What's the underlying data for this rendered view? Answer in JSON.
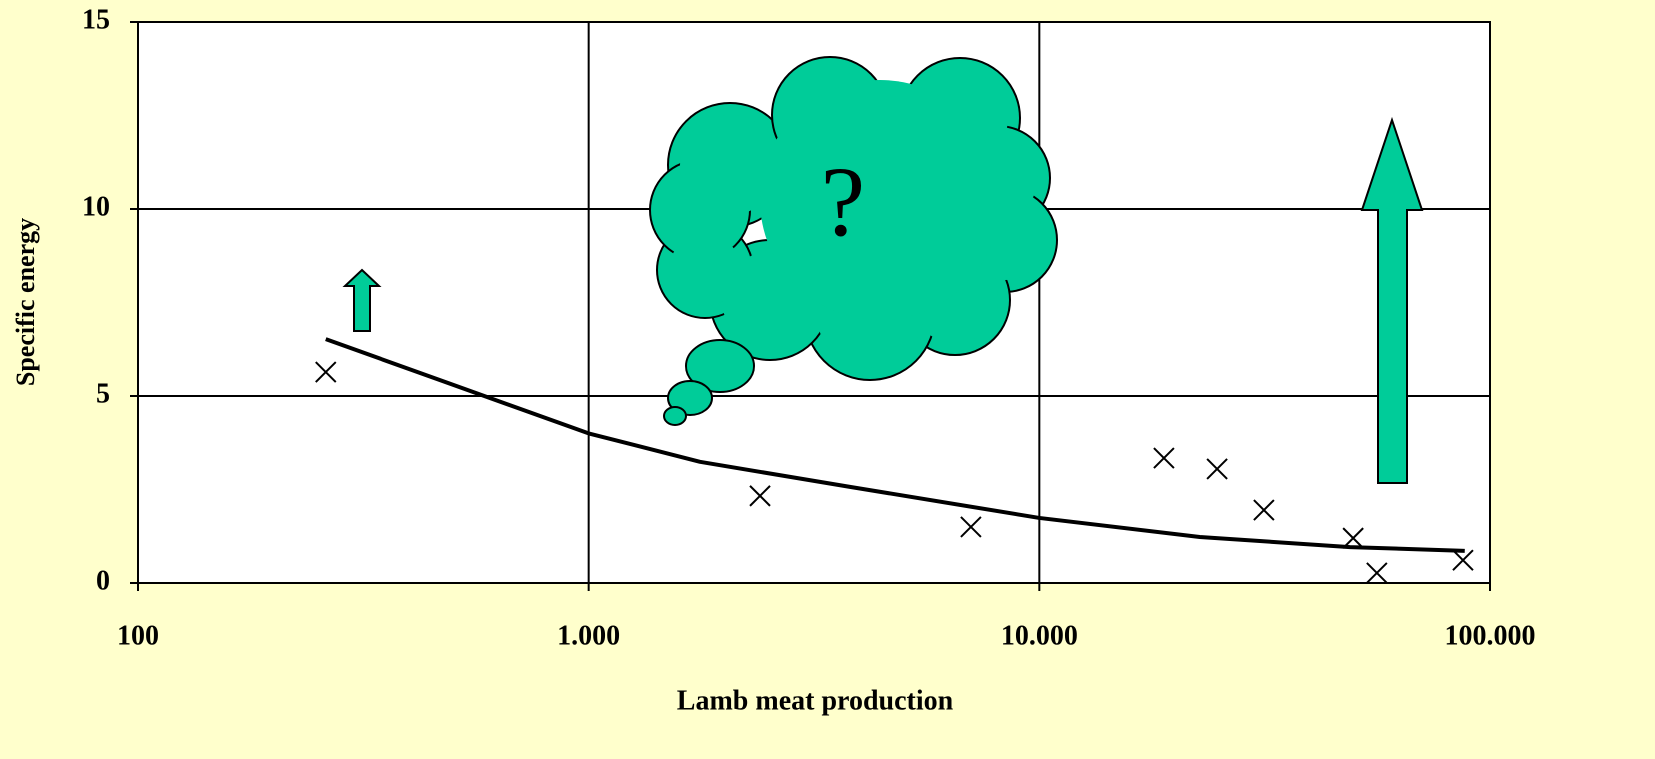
{
  "chart_data": {
    "type": "scatter",
    "x_label": "Lamb meat production",
    "y_label": "Specific energy",
    "annotation": "?",
    "log_x": true,
    "grid": true,
    "xlim": [
      100,
      100000
    ],
    "xticks": [
      100,
      {
        "value": 1000,
        "label": "1.000"
      },
      {
        "value": 10000,
        "label": "10.000"
      },
      {
        "value": 100000,
        "label": "100.000"
      }
    ],
    "ylim": [
      0,
      15
    ],
    "yticks": [
      0,
      5,
      10,
      15
    ],
    "series": [
      {
        "type": "scatter",
        "color": "#000000",
        "x": [
          261,
          2400,
          7050,
          18900,
          24800,
          31500,
          49700,
          56100,
          87100
        ],
        "values": [
          5.64,
          2.33,
          1.5,
          3.34,
          3.05,
          1.95,
          1.2,
          0.27,
          0.61
        ]
      },
      {
        "type": "line",
        "color": "#000000",
        "x": [
          261,
          1000,
          1766,
          3800,
          10000,
          22700,
          48900,
          87900
        ],
        "values": [
          6.52,
          4.0,
          3.24,
          2.57,
          1.74,
          1.23,
          0.96,
          0.86
        ]
      }
    ]
  }
}
